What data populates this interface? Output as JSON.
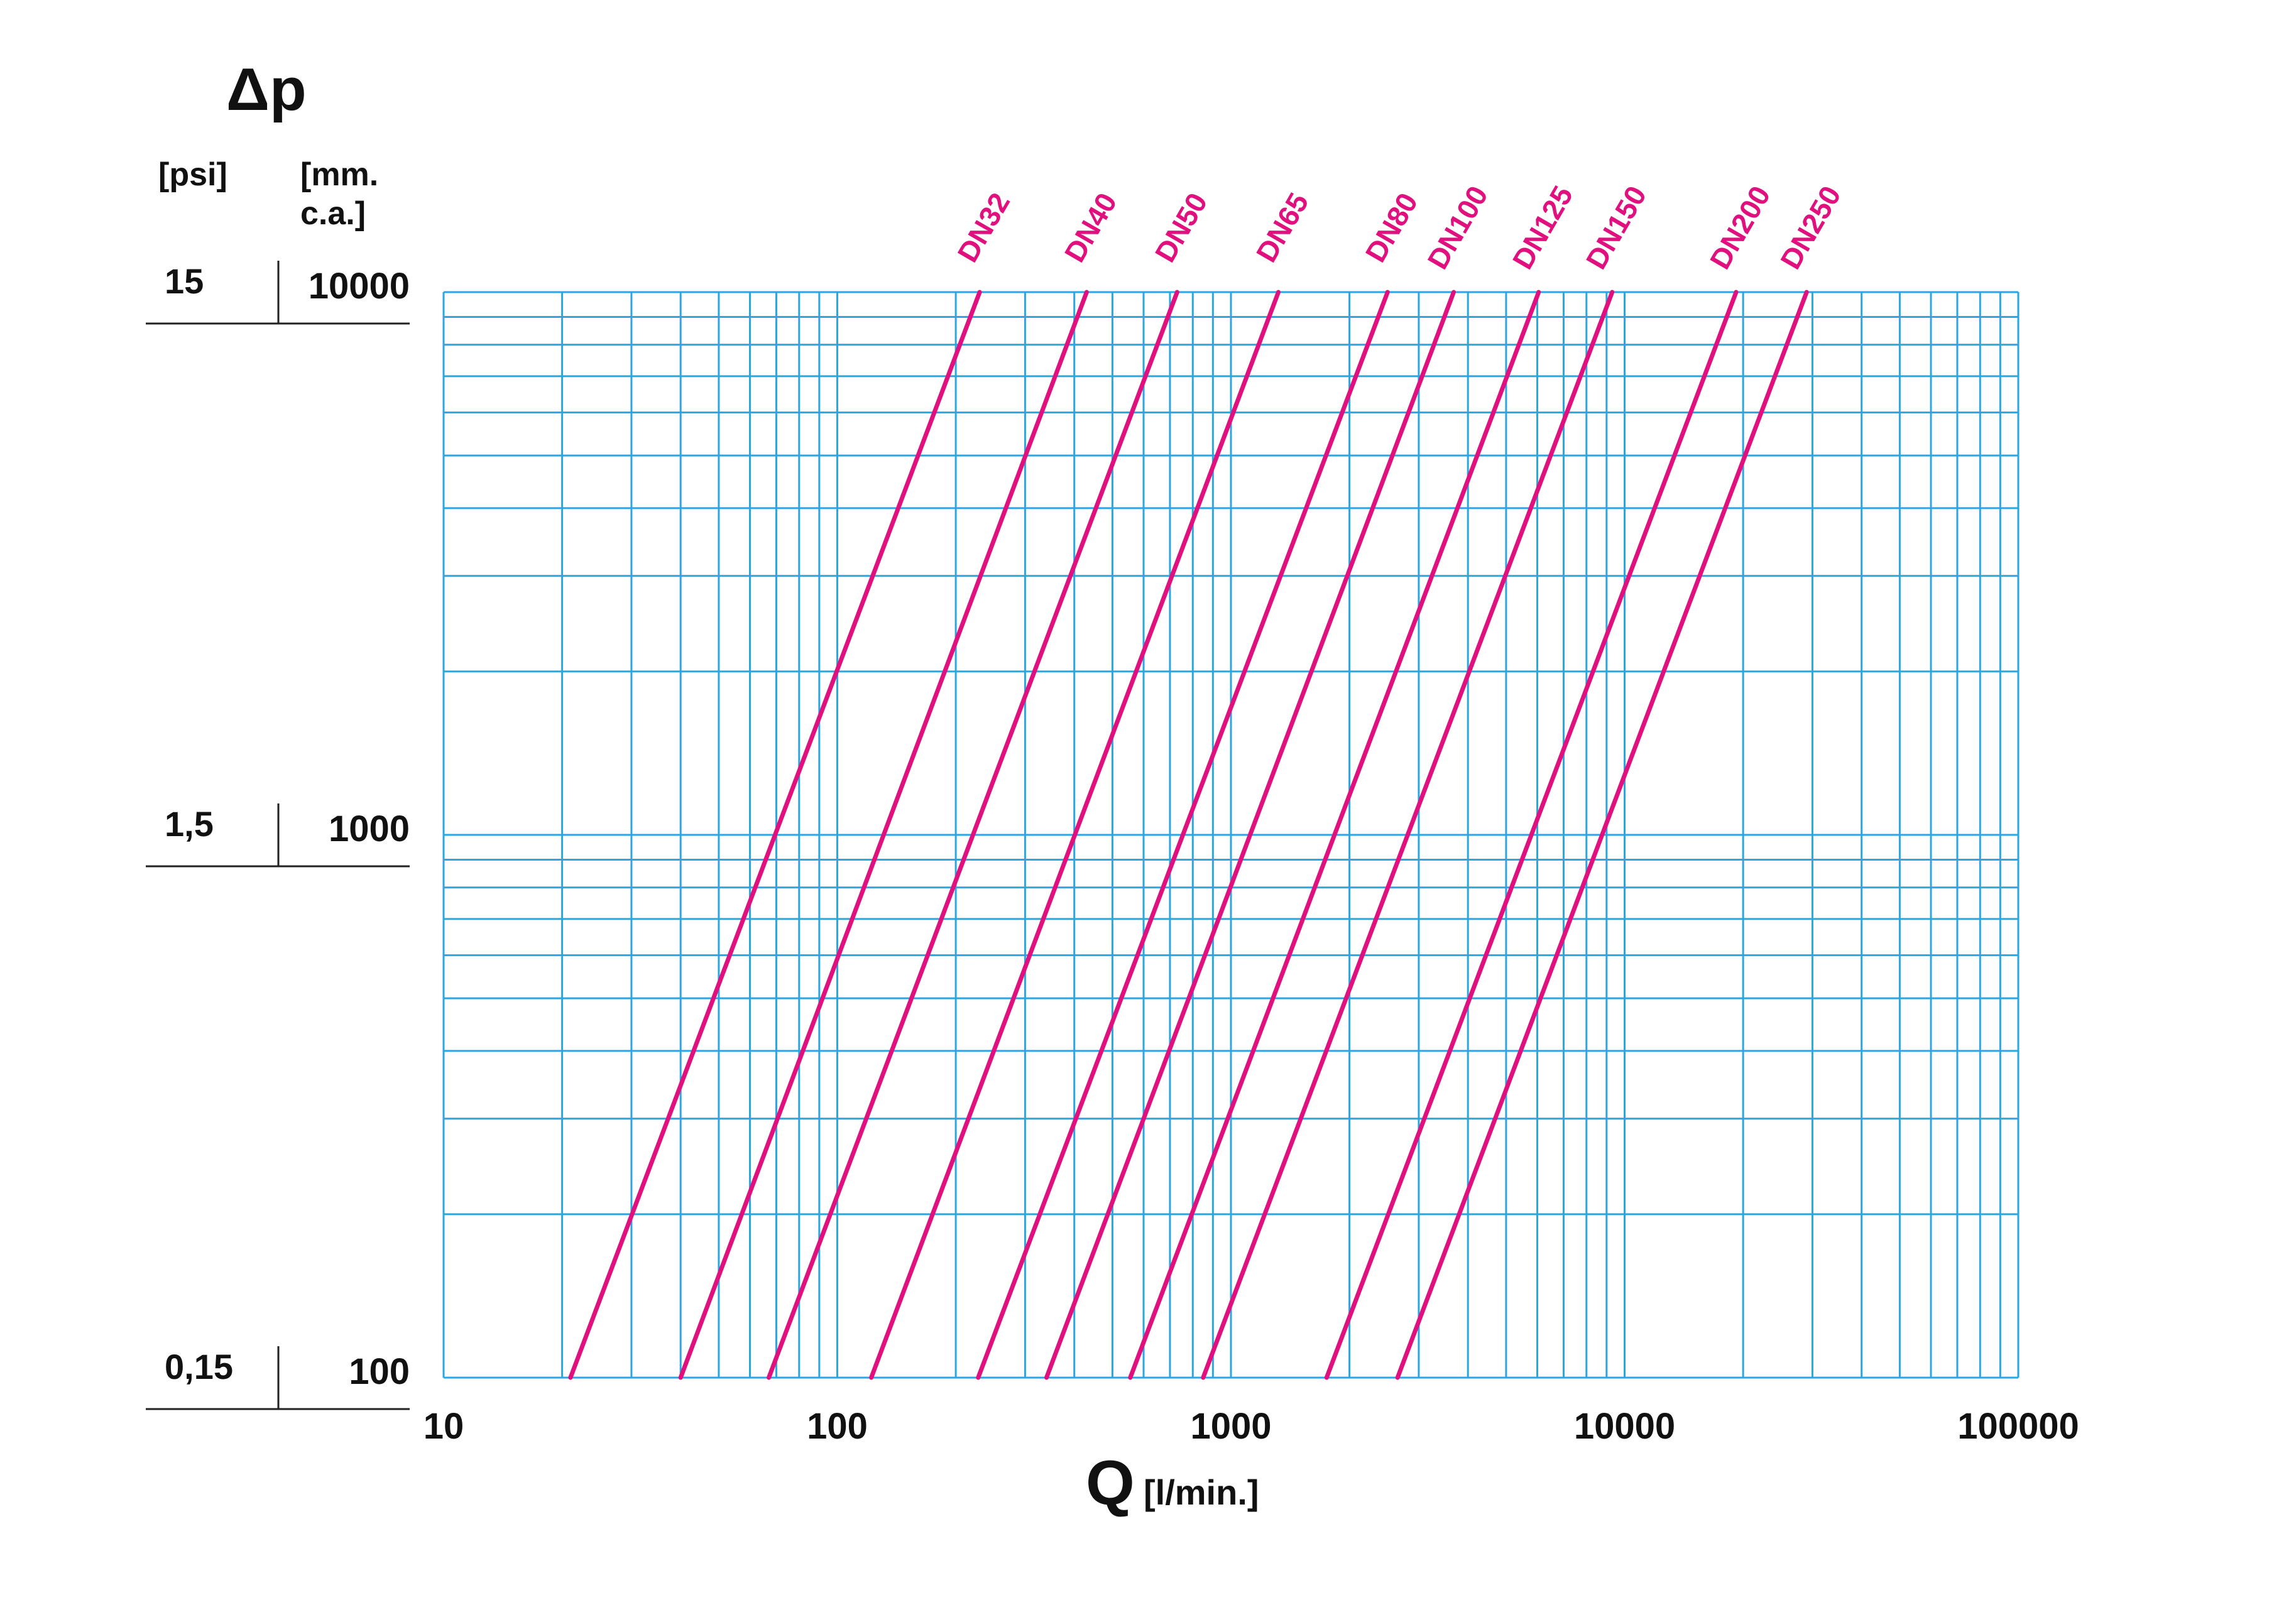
{
  "chart_data": {
    "type": "line",
    "title": "Δp",
    "xlabel": "Q",
    "xlabel_unit": "[l/min.]",
    "x_scale": "log",
    "y_scale": "log",
    "xlim": [
      10,
      100000
    ],
    "ylim": [
      100,
      10000
    ],
    "x_tick_labels": [
      "10",
      "100",
      "1000",
      "10000",
      "100000"
    ],
    "y_units": {
      "psi": "[psi]",
      "mm": "[mm.\nc.a.]"
    },
    "y_tick_labels_psi": [
      "15",
      "1,5",
      "0,15"
    ],
    "y_tick_labels_mm": [
      "10000",
      "1000",
      "100"
    ],
    "grid": true,
    "colors": {
      "grid": "#2aa7e0",
      "series": "#e0117f",
      "text": "#111111"
    },
    "series": [
      {
        "name": "DN32",
        "points": [
          [
            21,
            100
          ],
          [
            230,
            10000
          ]
        ]
      },
      {
        "name": "DN40",
        "points": [
          [
            40,
            100
          ],
          [
            430,
            10000
          ]
        ]
      },
      {
        "name": "DN50",
        "points": [
          [
            67,
            100
          ],
          [
            730,
            10000
          ]
        ]
      },
      {
        "name": "DN65",
        "points": [
          [
            122,
            100
          ],
          [
            1320,
            10000
          ]
        ]
      },
      {
        "name": "DN80",
        "points": [
          [
            228,
            100
          ],
          [
            2500,
            10000
          ]
        ]
      },
      {
        "name": "DN100",
        "points": [
          [
            340,
            100
          ],
          [
            3680,
            10000
          ]
        ]
      },
      {
        "name": "DN125",
        "points": [
          [
            555,
            100
          ],
          [
            6050,
            10000
          ]
        ]
      },
      {
        "name": "DN150",
        "points": [
          [
            850,
            100
          ],
          [
            9300,
            10000
          ]
        ]
      },
      {
        "name": "DN200",
        "points": [
          [
            1750,
            100
          ],
          [
            19200,
            10000
          ]
        ]
      },
      {
        "name": "DN250",
        "points": [
          [
            2650,
            100
          ],
          [
            29000,
            10000
          ]
        ]
      }
    ]
  }
}
